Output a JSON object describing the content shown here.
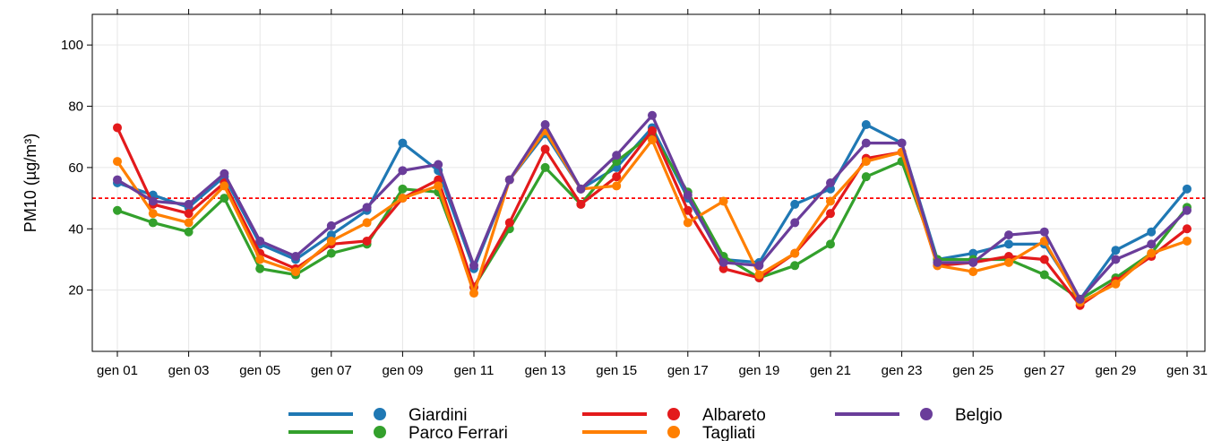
{
  "chart_data": {
    "type": "line",
    "ylabel": "PM10 (µg/m³)",
    "ylim": [
      0,
      110
    ],
    "yticks": [
      20,
      40,
      60,
      80,
      100
    ],
    "grid": true,
    "legend_position": "bottom",
    "threshold": {
      "value": 50,
      "color": "#ff0000",
      "style": "dashed"
    },
    "x": [
      "gen 01",
      "gen 02",
      "gen 03",
      "gen 04",
      "gen 05",
      "gen 06",
      "gen 07",
      "gen 08",
      "gen 09",
      "gen 10",
      "gen 11",
      "gen 12",
      "gen 13",
      "gen 14",
      "gen 15",
      "gen 16",
      "gen 17",
      "gen 18",
      "gen 19",
      "gen 20",
      "gen 21",
      "gen 22",
      "gen 23",
      "gen 24",
      "gen 25",
      "gen 26",
      "gen 27",
      "gen 28",
      "gen 29",
      "gen 30",
      "gen 31"
    ],
    "xtick_labels": [
      "gen 01",
      "gen 03",
      "gen 05",
      "gen 07",
      "gen 09",
      "gen 11",
      "gen 13",
      "gen 15",
      "gen 17",
      "gen 19",
      "gen 21",
      "gen 23",
      "gen 25",
      "gen 27",
      "gen 29",
      "gen 31"
    ],
    "series": [
      {
        "name": "Giardini",
        "color": "#1f78b4",
        "values": [
          55,
          51,
          47,
          57,
          35,
          30,
          38,
          46,
          68,
          59,
          27,
          56,
          71,
          53,
          60,
          73,
          50,
          30,
          29,
          48,
          53,
          74,
          68,
          30,
          32,
          35,
          35,
          17,
          33,
          39,
          53
        ]
      },
      {
        "name": "Parco Ferrari",
        "color": "#33a02c",
        "values": [
          46,
          42,
          39,
          50,
          27,
          25,
          32,
          35,
          53,
          52,
          21,
          40,
          60,
          48,
          62,
          71,
          52,
          31,
          24,
          28,
          35,
          57,
          62,
          30,
          30,
          30,
          25,
          17,
          24,
          32,
          47
        ]
      },
      {
        "name": "Albareto",
        "color": "#e31a1c",
        "values": [
          73,
          48,
          45,
          55,
          32,
          27,
          35,
          36,
          50,
          56,
          21,
          42,
          66,
          48,
          57,
          72,
          46,
          27,
          24,
          32,
          45,
          63,
          65,
          28,
          29,
          31,
          30,
          15,
          23,
          31,
          40
        ]
      },
      {
        "name": "Tagliati",
        "color": "#ff7f00",
        "values": [
          62,
          45,
          42,
          54,
          30,
          26,
          36,
          42,
          50,
          54,
          19,
          56,
          72,
          53,
          54,
          69,
          42,
          49,
          25,
          32,
          49,
          62,
          65,
          28,
          26,
          29,
          36,
          16,
          22,
          32,
          36
        ]
      },
      {
        "name": "Belgio",
        "color": "#6a3d9a",
        "values": [
          56,
          49,
          48,
          58,
          36,
          31,
          41,
          47,
          59,
          61,
          28,
          56,
          74,
          53,
          64,
          77,
          51,
          29,
          28,
          42,
          55,
          68,
          68,
          29,
          29,
          38,
          39,
          17,
          30,
          35,
          46
        ]
      }
    ]
  }
}
